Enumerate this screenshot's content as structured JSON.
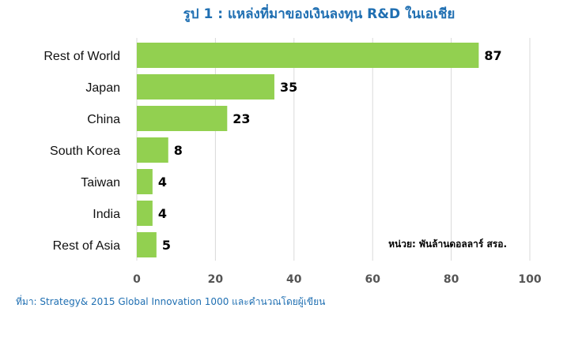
{
  "title": "รูป 1 : แหล่งที่มาของเงินลงทุน R&D ในเอเชีย",
  "source": "ที่มา: Strategy& 2015 Global Innovation 1000 และคำนวณโดยผู้เขียน",
  "colors": {
    "bar": "#92d050",
    "title": "#1f6fb2",
    "grid": "#d9d9d9"
  },
  "chart_data": {
    "type": "bar",
    "orientation": "horizontal",
    "categories": [
      "Rest of World",
      "Japan",
      "China",
      "South Korea",
      "Taiwan",
      "India",
      "Rest of Asia"
    ],
    "values": [
      87,
      35,
      23,
      8,
      4,
      4,
      5
    ],
    "xlim": [
      0,
      100
    ],
    "xticks": [
      0,
      20,
      40,
      60,
      80,
      100
    ],
    "grid": true,
    "unit_note": "หน่วย: พันล้านดอลลาร์ สรอ."
  }
}
